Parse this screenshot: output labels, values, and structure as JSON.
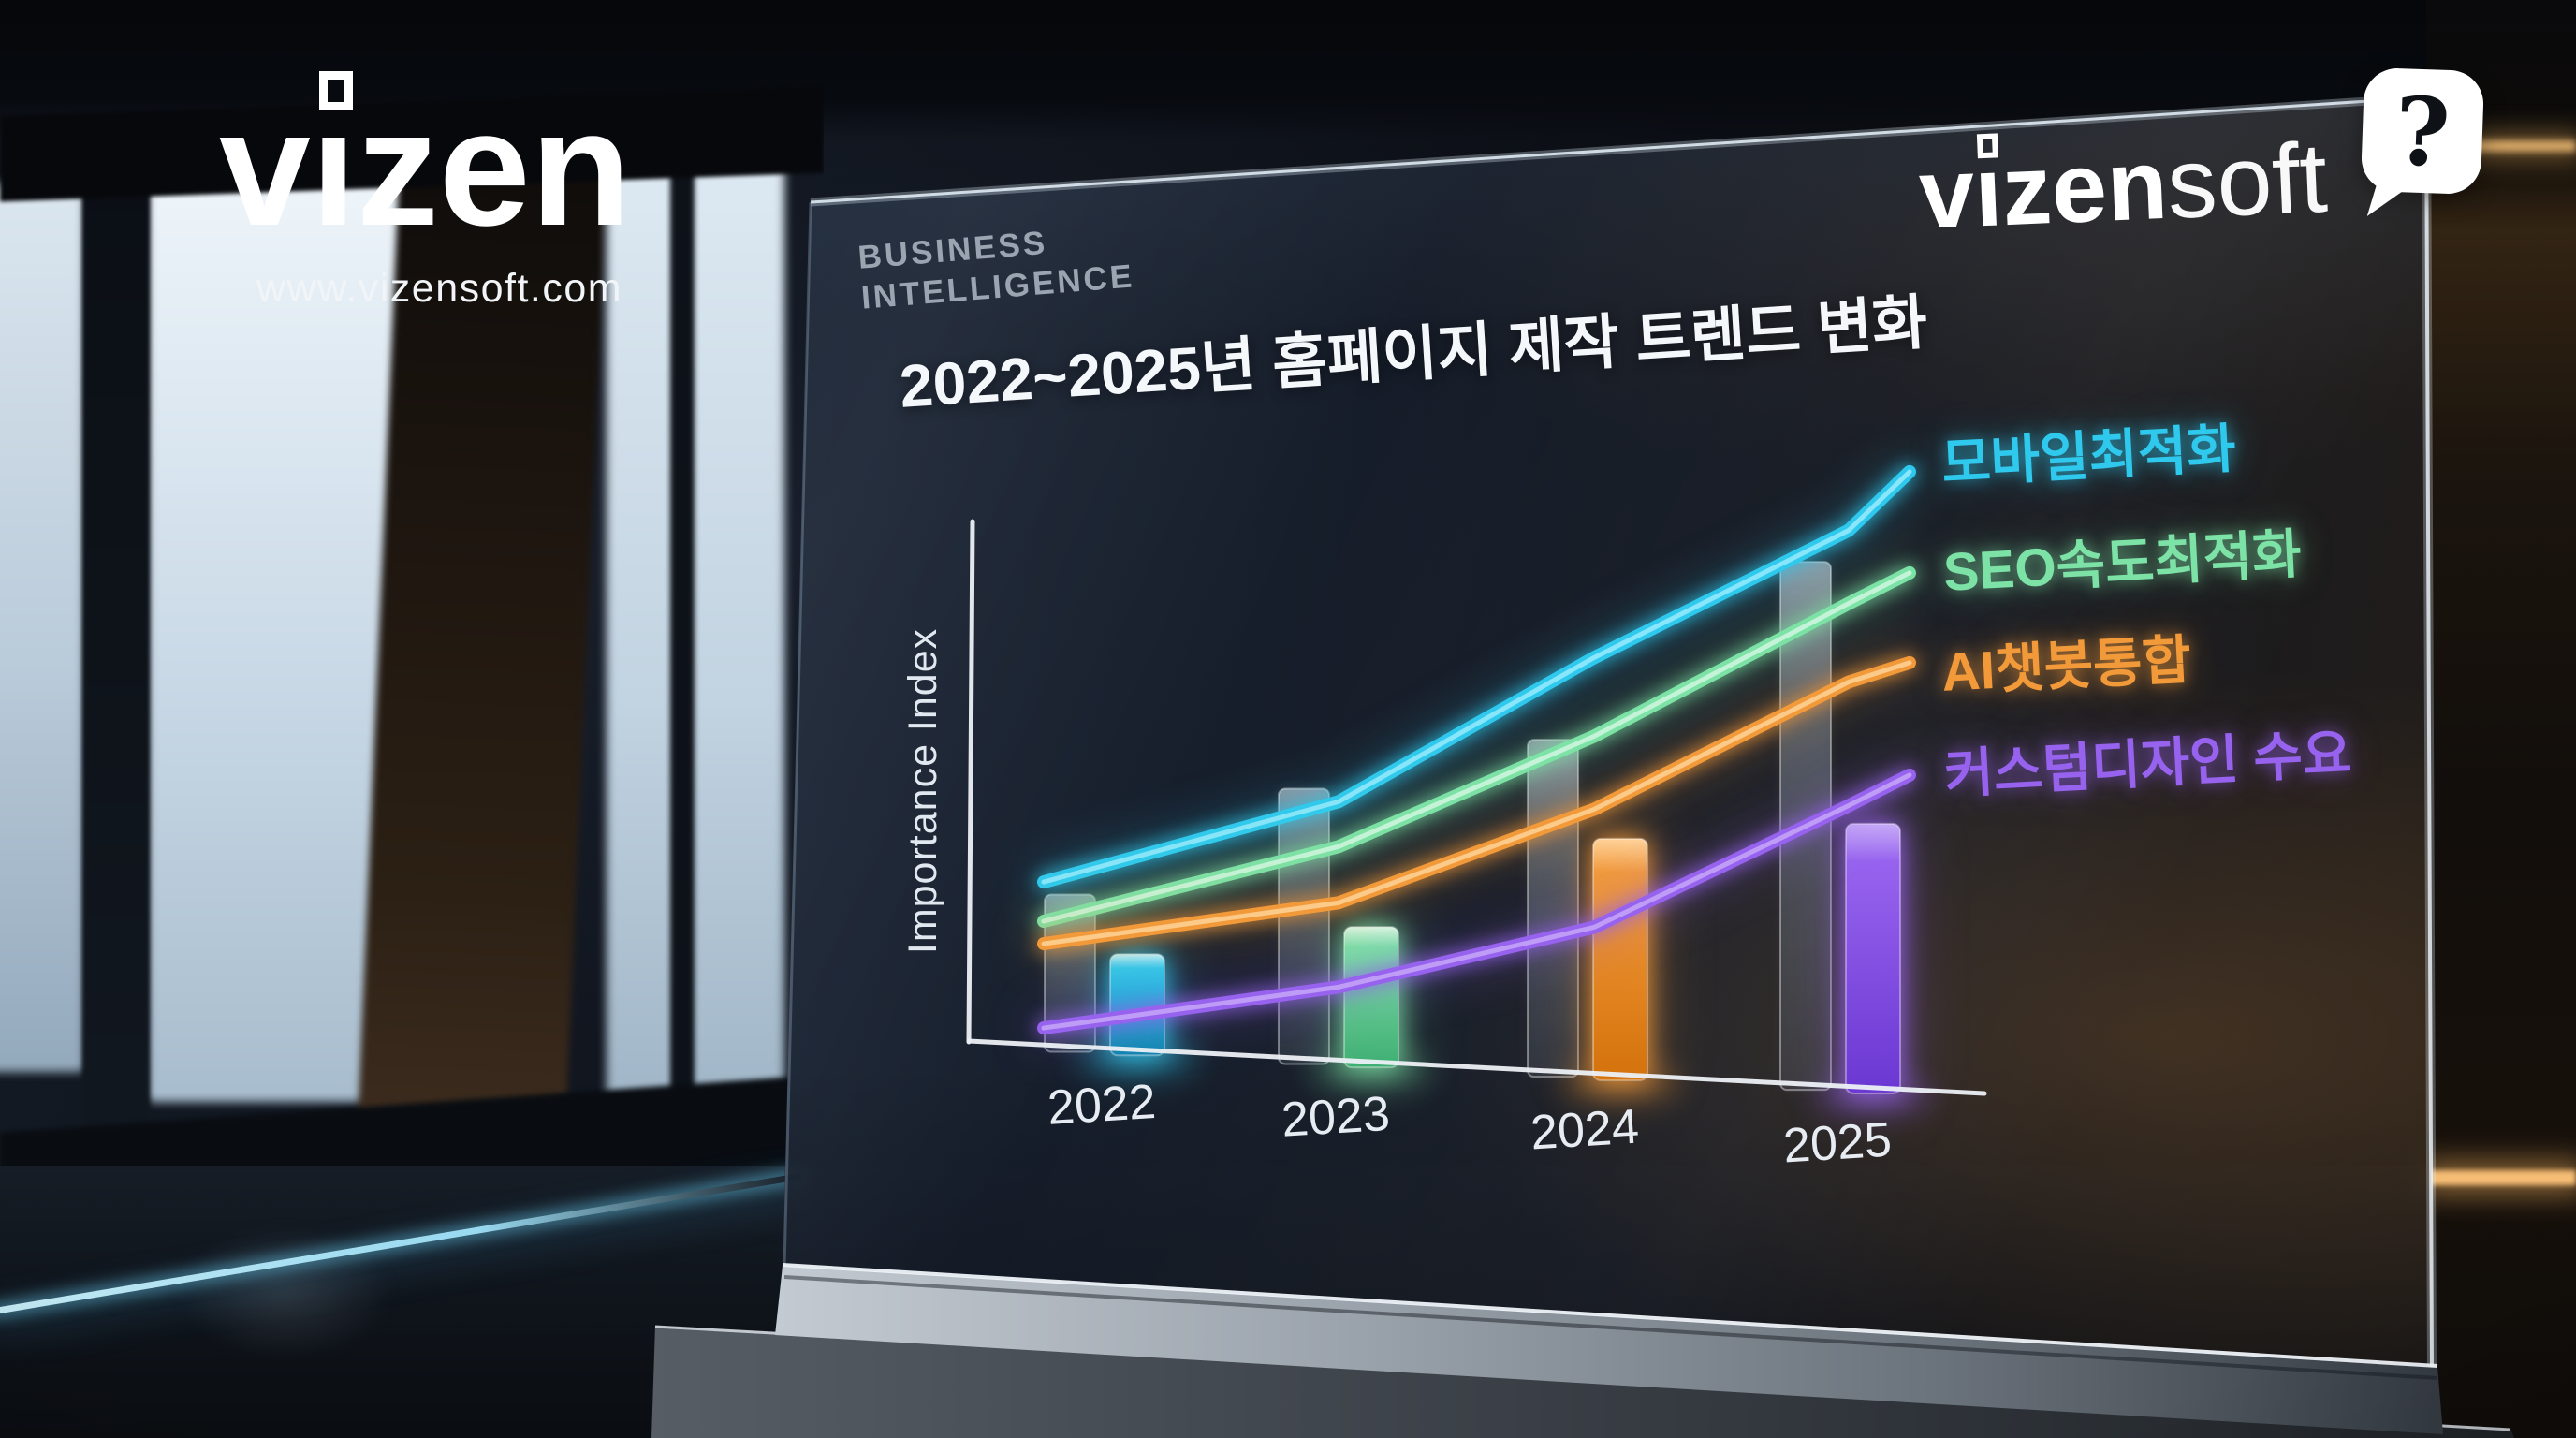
{
  "header": {
    "eyebrow_line1": "BUSINESS",
    "eyebrow_line2": "INTELLIGENCE",
    "title": "2022~2025년 홈페이지 제작 트렌드 변화"
  },
  "brand_left": {
    "word_v": "v",
    "word_i": "ı",
    "word_rest": "zen",
    "url": "www.vizensoft.com"
  },
  "brand_right": {
    "word_v": "v",
    "word_i": "ı",
    "word_rest": "zen",
    "word_suffix": "soft",
    "bubble_glyph": "?"
  },
  "chart_data": {
    "type": "line+bar",
    "title": "2022~2025년 홈페이지 제작 트렌드 변화",
    "categories": [
      "2022",
      "2023",
      "2024",
      "2025"
    ],
    "xlabel": "",
    "ylabel": "Importance Index",
    "ylim": [
      0,
      100
    ],
    "grid": false,
    "legend_position": "right-outside",
    "line_series": [
      {
        "slug": "mobile-optimization",
        "name": "모바일최적화",
        "color": "#2fc9ee",
        "bright": "#a8efff",
        "values": [
          29,
          46,
          74,
          99
        ],
        "tip": 110
      },
      {
        "slug": "seo-speed-optimization",
        "name": "SEO속도최적화",
        "color": "#7ce2a6",
        "bright": "#dcf9e8",
        "values": [
          22,
          38,
          60,
          86
        ],
        "tip": 92
      },
      {
        "slug": "ai-chatbot-integration",
        "name": "AI챗봇통합",
        "color": "#f29a3a",
        "bright": "#ffd9a4",
        "values": [
          18,
          28,
          47,
          72
        ],
        "tip": 76
      },
      {
        "slug": "custom-design-demand",
        "name": "커스텀디자인 수요",
        "color": "#9763ee",
        "bright": "#ccb0f9",
        "values": [
          3,
          13,
          26,
          50
        ],
        "tip": 56
      }
    ],
    "bar_series": [
      {
        "slug": "reference-gray",
        "values": [
          28,
          49,
          60,
          94
        ]
      },
      {
        "slug": "highlight-colored",
        "values": [
          18,
          25,
          43,
          48
        ],
        "bars": [
          {
            "color": "#2fc9ee",
            "bright": "#b9f2ff",
            "dark": "#0f85ad"
          },
          {
            "color": "#7ce2a6",
            "bright": "#d9f9e6",
            "dark": "#3fae72"
          },
          {
            "color": "#f29a3a",
            "bright": "#ffd59e",
            "dark": "#d4720c"
          },
          {
            "color": "#9763ee",
            "bright": "#c9aef8",
            "dark": "#6a37d2"
          }
        ]
      }
    ]
  }
}
